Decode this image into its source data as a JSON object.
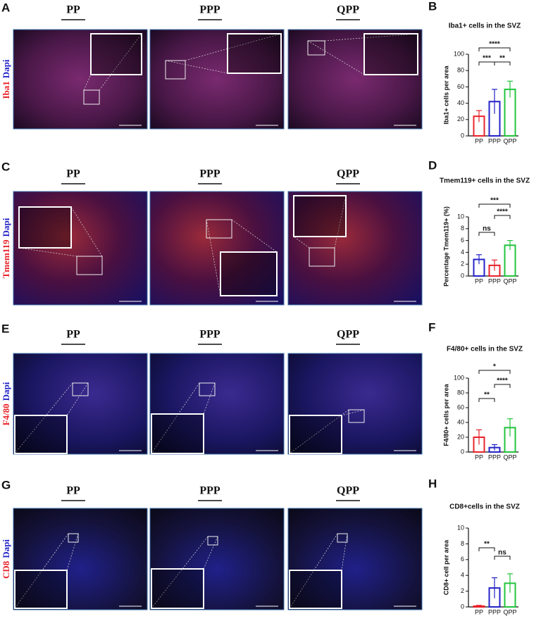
{
  "rows": [
    {
      "letter": "A",
      "stain": "Iba1",
      "counter": "Dapi",
      "groups": [
        "PP",
        "PPP",
        "QPP"
      ]
    },
    {
      "letter": "C",
      "stain": "Tmem119",
      "counter": "Dapi",
      "groups": [
        "PP",
        "PPP",
        "QPP"
      ]
    },
    {
      "letter": "E",
      "stain": "F4/80",
      "counter": "Dapi",
      "groups": [
        "PP",
        "PPP",
        "QPP"
      ]
    },
    {
      "letter": "G",
      "stain": "CD8",
      "counter": "Dapi",
      "groups": [
        "PP",
        "PPP",
        "QPP"
      ]
    }
  ],
  "chart_data": [
    {
      "type": "bar",
      "panel": "B",
      "title": "Iba1+ cells in the SVZ",
      "ylabel": "Iba1+ cells per area",
      "categories": [
        "PP",
        "PPP",
        "QPP"
      ],
      "values": [
        24,
        42,
        57
      ],
      "errors": [
        7,
        15,
        10
      ],
      "colors": [
        "#e8232a",
        "#2323c8",
        "#22c43c"
      ],
      "ylim": [
        0,
        100
      ],
      "yticks": [
        0,
        20,
        40,
        60,
        80,
        100
      ],
      "annotations": [
        "****",
        "***",
        "**"
      ]
    },
    {
      "type": "bar",
      "panel": "D",
      "title": "Tmem119+ cells in the SVZ",
      "ylabel": "Percentage Tmem119+ (%)",
      "categories": [
        "PP",
        "PPP",
        "QPP"
      ],
      "values": [
        2.8,
        1.8,
        5.2
      ],
      "errors": [
        0.8,
        0.9,
        0.8
      ],
      "colors": [
        "#2323c8",
        "#e8232a",
        "#22c43c"
      ],
      "ylim": [
        0,
        10
      ],
      "yticks": [
        0,
        2,
        4,
        6,
        8,
        10
      ],
      "annotations": [
        "***",
        "ns",
        "****"
      ]
    },
    {
      "type": "bar",
      "panel": "F",
      "title": "F4/80+ cells in the SVZ",
      "ylabel": "F4/80+ cells per area",
      "categories": [
        "PP",
        "PPP",
        "QPP"
      ],
      "values": [
        20,
        6,
        33
      ],
      "errors": [
        10,
        4,
        12
      ],
      "colors": [
        "#e8232a",
        "#2323c8",
        "#22c43c"
      ],
      "ylim": [
        0,
        100
      ],
      "yticks": [
        0,
        20,
        40,
        60,
        80,
        100
      ],
      "annotations": [
        "*",
        "**",
        "****"
      ]
    },
    {
      "type": "bar",
      "panel": "H",
      "title": "CD8+cells in the SVZ",
      "ylabel": "CD8+ cell per area",
      "categories": [
        "PP",
        "PPP",
        "QPP"
      ],
      "values": [
        0.1,
        2.4,
        3.0
      ],
      "errors": [
        0.1,
        1.3,
        1.2
      ],
      "colors": [
        "#e8232a",
        "#2323c8",
        "#22c43c"
      ],
      "ylim": [
        0,
        10
      ],
      "yticks": [
        0,
        2,
        4,
        6,
        8,
        10
      ],
      "annotations": [
        "**",
        "ns"
      ]
    }
  ]
}
